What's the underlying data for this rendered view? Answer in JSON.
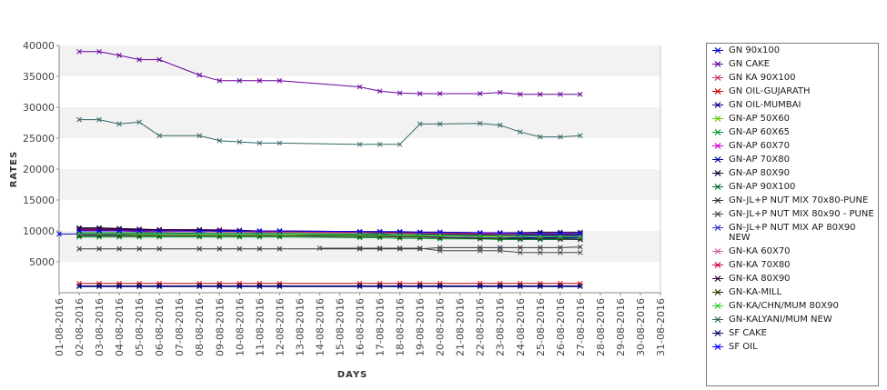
{
  "chart_data": {
    "type": "line",
    "title": "",
    "xlabel": "DAYS",
    "ylabel": "RATES",
    "ylim": [
      0,
      40000
    ],
    "yticks": [
      "5000",
      "10000",
      "15000",
      "20000",
      "25000",
      "30000",
      "35000",
      "40000"
    ],
    "categories": [
      "01-08-2016",
      "02-08-2016",
      "03-08-2016",
      "04-08-2016",
      "05-08-2016",
      "06-08-2016",
      "07-08-2016",
      "08-08-2016",
      "09-08-2016",
      "10-08-2016",
      "11-08-2016",
      "12-08-2016",
      "13-08-2016",
      "14-08-2016",
      "15-08-2016",
      "16-08-2016",
      "17-08-2016",
      "18-08-2016",
      "19-08-2016",
      "20-08-2016",
      "21-08-2016",
      "22-08-2016",
      "23-08-2016",
      "24-08-2016",
      "25-08-2016",
      "26-08-2016",
      "27-08-2016",
      "28-08-2016",
      "29-08-2016",
      "30-08-2016",
      "31-08-2016"
    ],
    "grid": "alternating horizontal bands",
    "legend_position": "right",
    "series": [
      {
        "name": "GN 90x100",
        "color": "#0000cc",
        "values": [
          9500,
          9500,
          9500,
          9500,
          9500,
          9500,
          null,
          9500,
          9500,
          9500,
          9500,
          9500,
          null,
          null,
          null,
          9300,
          9300,
          9200,
          9100,
          9000,
          null,
          8900,
          8900,
          8900,
          8900,
          8900,
          8900,
          null,
          null,
          null,
          null
        ]
      },
      {
        "name": "GN CAKE",
        "color": "#660099",
        "values": [
          null,
          39000,
          39000,
          38400,
          37700,
          37700,
          null,
          35200,
          34300,
          34300,
          34300,
          34300,
          null,
          null,
          null,
          33300,
          32600,
          32300,
          32200,
          32200,
          null,
          32200,
          32400,
          32100,
          32100,
          32100,
          32100,
          null,
          null,
          null,
          null
        ]
      },
      {
        "name": "GN KA 90X100",
        "color": "#cc3366",
        "values": [
          null,
          10400,
          10400,
          10200,
          10200,
          10200,
          null,
          10200,
          10200,
          10100,
          9900,
          9900,
          null,
          null,
          null,
          9800,
          9700,
          9700,
          9600,
          9700,
          null,
          9600,
          9600,
          9500,
          9500,
          9500,
          9500,
          null,
          null,
          null,
          null
        ]
      },
      {
        "name": "GN OIL-GUJARATH",
        "color": "#cc0000",
        "values": [
          null,
          1500,
          1500,
          1500,
          1500,
          1500,
          null,
          1500,
          1500,
          1500,
          1500,
          1500,
          null,
          null,
          null,
          1500,
          1500,
          1500,
          1500,
          1500,
          null,
          1500,
          1500,
          1500,
          1500,
          1500,
          1500,
          null,
          null,
          null,
          null
        ]
      },
      {
        "name": "GN OIL-MUMBAI",
        "color": "#000080",
        "values": [
          null,
          1000,
          1000,
          1000,
          1000,
          1000,
          null,
          1000,
          1000,
          1000,
          1000,
          1000,
          null,
          null,
          null,
          1000,
          1000,
          1000,
          1000,
          1000,
          null,
          1000,
          1000,
          1000,
          1000,
          1000,
          1000,
          null,
          null,
          null,
          null
        ]
      },
      {
        "name": "GN-AP 50X60",
        "color": "#66cc00",
        "values": [
          null,
          9400,
          9400,
          9400,
          9400,
          9300,
          null,
          9300,
          9300,
          9300,
          9300,
          9300,
          null,
          null,
          null,
          9200,
          9200,
          9200,
          9200,
          9200,
          null,
          9100,
          9100,
          9100,
          9100,
          9100,
          9100,
          null,
          null,
          null,
          null
        ]
      },
      {
        "name": "GN-AP 60X65",
        "color": "#009933",
        "values": [
          null,
          9000,
          9000,
          9000,
          9000,
          9000,
          null,
          9000,
          9000,
          9000,
          9000,
          9000,
          null,
          null,
          null,
          8900,
          8900,
          8800,
          8800,
          8700,
          null,
          8700,
          8600,
          8600,
          8600,
          8600,
          8600,
          null,
          null,
          null,
          null
        ]
      },
      {
        "name": "GN-AP 60X70",
        "color": "#cc00cc",
        "values": [
          null,
          10100,
          10200,
          10000,
          9900,
          9900,
          null,
          9900,
          9900,
          9800,
          9800,
          9800,
          null,
          null,
          null,
          9700,
          9700,
          9600,
          9600,
          9500,
          null,
          9500,
          9400,
          9400,
          9300,
          9300,
          9300,
          null,
          null,
          null,
          null
        ]
      },
      {
        "name": "GN-AP 70X80",
        "color": "#000099",
        "values": [
          null,
          10300,
          10300,
          10200,
          10100,
          10100,
          null,
          9800,
          9900,
          9900,
          9700,
          10000,
          null,
          null,
          null,
          9700,
          9600,
          9600,
          9500,
          9400,
          null,
          9300,
          9200,
          9300,
          9300,
          9300,
          9300,
          null,
          null,
          null,
          null
        ]
      },
      {
        "name": "GN-AP 80X90",
        "color": "#000033",
        "values": [
          null,
          10500,
          10500,
          10400,
          10300,
          10200,
          null,
          10100,
          10000,
          10000,
          9900,
          9900,
          null,
          null,
          null,
          9800,
          9700,
          9700,
          9600,
          9500,
          null,
          9400,
          9300,
          9300,
          9400,
          9400,
          9400,
          null,
          null,
          null,
          null
        ]
      },
      {
        "name": "GN-AP 90X100",
        "color": "#006633",
        "values": [
          null,
          9700,
          9700,
          9700,
          9700,
          9700,
          null,
          9600,
          9600,
          9600,
          9600,
          9600,
          null,
          null,
          null,
          9500,
          9500,
          9400,
          9400,
          9300,
          null,
          9200,
          9200,
          9100,
          9100,
          9000,
          9000,
          null,
          null,
          null,
          null
        ]
      },
      {
        "name": "GN-JL+P NUT MIX 70x80-PUNE",
        "color": "#333333",
        "values": [
          null,
          7100,
          7100,
          7100,
          7100,
          7100,
          null,
          7100,
          7100,
          7100,
          7100,
          7100,
          null,
          null,
          null,
          7100,
          7100,
          7100,
          7100,
          7300,
          null,
          7300,
          7300,
          7300,
          7300,
          7300,
          7400,
          null,
          null,
          null,
          null
        ]
      },
      {
        "name": "GN-JL+P NUT MIX 80x90 - PUNE",
        "color": "#444444",
        "values": [
          null,
          null,
          null,
          null,
          null,
          null,
          null,
          null,
          null,
          null,
          null,
          null,
          null,
          7200,
          null,
          7200,
          7200,
          7200,
          7200,
          6800,
          null,
          6800,
          6800,
          6500,
          6500,
          6500,
          6500,
          null,
          null,
          null,
          null
        ]
      },
      {
        "name": "GN-JL+P NUT MIX AP 80X90 NEW",
        "color": "#3333cc",
        "values": [
          null,
          9300,
          9300,
          9300,
          9200,
          9200,
          null,
          9200,
          9200,
          9200,
          9200,
          9200,
          null,
          null,
          null,
          9100,
          9100,
          9100,
          9000,
          9000,
          null,
          8900,
          8900,
          8800,
          8800,
          8800,
          8800,
          null,
          null,
          null,
          null
        ]
      },
      {
        "name": "GN-KA 60X70",
        "color": "#cc6699",
        "values": [
          null,
          10000,
          10000,
          10000,
          10000,
          9900,
          null,
          9900,
          9800,
          9800,
          9800,
          9800,
          null,
          null,
          null,
          9700,
          9700,
          9600,
          9600,
          9600,
          null,
          9500,
          9500,
          9500,
          9500,
          9500,
          9500,
          null,
          null,
          null,
          null
        ]
      },
      {
        "name": "GN-KA 70X80",
        "color": "#cc0033",
        "values": [
          null,
          10100,
          10100,
          10100,
          10100,
          10100,
          null,
          10000,
          10000,
          10000,
          9900,
          9900,
          null,
          null,
          null,
          9800,
          9800,
          9700,
          9700,
          9700,
          null,
          9600,
          9600,
          9600,
          9600,
          9600,
          9600,
          null,
          null,
          null,
          null
        ]
      },
      {
        "name": "GN-KA 80X90",
        "color": "#330033",
        "values": [
          null,
          10300,
          10300,
          10300,
          10200,
          10200,
          null,
          10200,
          10100,
          10100,
          10000,
          10000,
          null,
          null,
          null,
          9900,
          9900,
          9800,
          9800,
          9800,
          null,
          9700,
          9700,
          9700,
          9800,
          9800,
          9800,
          null,
          null,
          null,
          null
        ]
      },
      {
        "name": "GN-KA-MILL",
        "color": "#333300",
        "values": [
          null,
          9200,
          9200,
          9200,
          9200,
          9200,
          null,
          9200,
          9200,
          9200,
          9200,
          9200,
          null,
          null,
          null,
          9100,
          9100,
          9000,
          9000,
          8900,
          null,
          8800,
          8800,
          8700,
          8700,
          8700,
          8600,
          null,
          null,
          null,
          null
        ]
      },
      {
        "name": "GN-KA/CHN/MUM 80X90",
        "color": "#33cc33",
        "values": [
          null,
          9600,
          9600,
          9600,
          9600,
          9500,
          null,
          9500,
          9500,
          9500,
          9500,
          9500,
          null,
          null,
          null,
          9400,
          9400,
          9400,
          9300,
          9300,
          null,
          9200,
          9200,
          9200,
          9100,
          9100,
          9100,
          null,
          null,
          null,
          null
        ]
      },
      {
        "name": "GN-KALYANI/MUM NEW",
        "color": "#336666",
        "values": [
          null,
          28000,
          28000,
          27300,
          27600,
          25400,
          null,
          25400,
          24600,
          24400,
          24200,
          24200,
          null,
          null,
          null,
          24000,
          24000,
          24000,
          27300,
          27300,
          null,
          27400,
          27100,
          26000,
          25200,
          25200,
          25400,
          null,
          null,
          null,
          null
        ]
      },
      {
        "name": "SF CAKE",
        "color": "#000066",
        "values": [
          null,
          1100,
          1100,
          1100,
          1100,
          1100,
          null,
          1100,
          1100,
          1100,
          1100,
          1100,
          null,
          null,
          null,
          1100,
          1100,
          1100,
          1100,
          1100,
          null,
          1100,
          1100,
          1100,
          1100,
          1100,
          1100,
          null,
          null,
          null,
          null
        ]
      },
      {
        "name": "SF OIL",
        "color": "#0000ff",
        "values": [
          null,
          10000,
          10000,
          10000,
          10000,
          10000,
          null,
          10000,
          10000,
          10000,
          10000,
          10000,
          null,
          null,
          null,
          9900,
          9900,
          9900,
          9800,
          9800,
          null,
          9700,
          9700,
          9600,
          9600,
          9600,
          9600,
          null,
          null,
          null,
          null
        ]
      }
    ]
  }
}
